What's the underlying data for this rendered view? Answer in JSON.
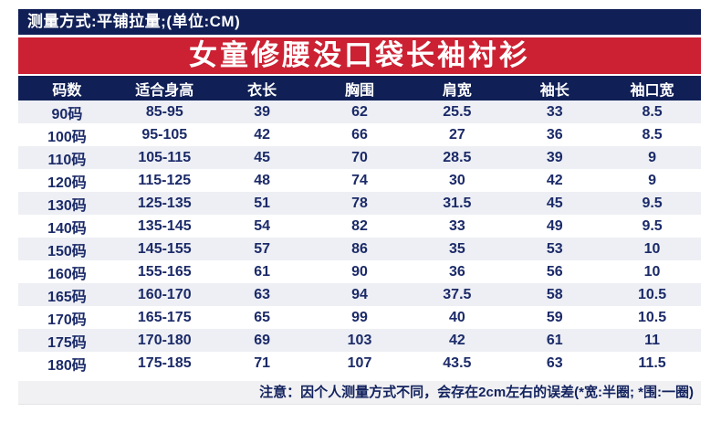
{
  "meta_bar": {
    "text": "测量方式:平铺拉量;(单位:CM)"
  },
  "title": "女童修腰没口袋长袖衬衫",
  "table": {
    "headers": [
      "码数",
      "适合身高",
      "衣长",
      "胸围",
      "肩宽",
      "袖长",
      "袖口宽"
    ],
    "rows": [
      [
        "90码",
        "85-95",
        "39",
        "62",
        "25.5",
        "33",
        "8.5"
      ],
      [
        "100码",
        "95-105",
        "42",
        "66",
        "27",
        "36",
        "8.5"
      ],
      [
        "110码",
        "105-115",
        "45",
        "70",
        "28.5",
        "39",
        "9"
      ],
      [
        "120码",
        "115-125",
        "48",
        "74",
        "30",
        "42",
        "9"
      ],
      [
        "130码",
        "125-135",
        "51",
        "78",
        "31.5",
        "45",
        "9.5"
      ],
      [
        "140码",
        "135-145",
        "54",
        "82",
        "33",
        "49",
        "9.5"
      ],
      [
        "150码",
        "145-155",
        "57",
        "86",
        "35",
        "53",
        "10"
      ],
      [
        "160码",
        "155-165",
        "61",
        "90",
        "36",
        "56",
        "10"
      ],
      [
        "165码",
        "160-170",
        "63",
        "94",
        "37.5",
        "58",
        "10.5"
      ],
      [
        "170码",
        "165-175",
        "65",
        "99",
        "40",
        "59",
        "10.5"
      ],
      [
        "175码",
        "170-180",
        "69",
        "103",
        "42",
        "61",
        "11"
      ],
      [
        "180码",
        "175-185",
        "71",
        "107",
        "43.5",
        "63",
        "11.5"
      ]
    ],
    "note": "注意：因个人测量方式不同，会存在2cm左右的误差(*宽:半圈; *围:一圈)"
  },
  "chart_data": {
    "type": "table",
    "title": "女童修腰没口袋长袖衬衫",
    "unit": "CM",
    "measurement_method": "平铺拉量",
    "columns": [
      "码数",
      "适合身高",
      "衣长",
      "胸围",
      "肩宽",
      "袖长",
      "袖口宽"
    ],
    "rows": [
      [
        "90码",
        "85-95",
        39,
        62,
        25.5,
        33,
        8.5
      ],
      [
        "100码",
        "95-105",
        42,
        66,
        27,
        36,
        8.5
      ],
      [
        "110码",
        "105-115",
        45,
        70,
        28.5,
        39,
        9
      ],
      [
        "120码",
        "115-125",
        48,
        74,
        30,
        42,
        9
      ],
      [
        "130码",
        "125-135",
        51,
        78,
        31.5,
        45,
        9.5
      ],
      [
        "140码",
        "135-145",
        54,
        82,
        33,
        49,
        9.5
      ],
      [
        "150码",
        "145-155",
        57,
        86,
        35,
        53,
        10
      ],
      [
        "160码",
        "155-165",
        61,
        90,
        36,
        56,
        10
      ],
      [
        "165码",
        "160-170",
        63,
        94,
        37.5,
        58,
        10.5
      ],
      [
        "170码",
        "165-175",
        65,
        99,
        40,
        59,
        10.5
      ],
      [
        "175码",
        "170-180",
        69,
        103,
        42,
        61,
        11
      ],
      [
        "180码",
        "175-185",
        71,
        107,
        43.5,
        63,
        11.5
      ]
    ],
    "note": "注意：因个人测量方式不同，会存在2cm左右的误差(*宽:半圈; *围:一圈)"
  },
  "colors": {
    "navy": "#101f56",
    "red": "#cb2133",
    "row_alt": "#edeff4",
    "note_bg": "#f1f1f3",
    "cell_text": "#1b2a68"
  }
}
